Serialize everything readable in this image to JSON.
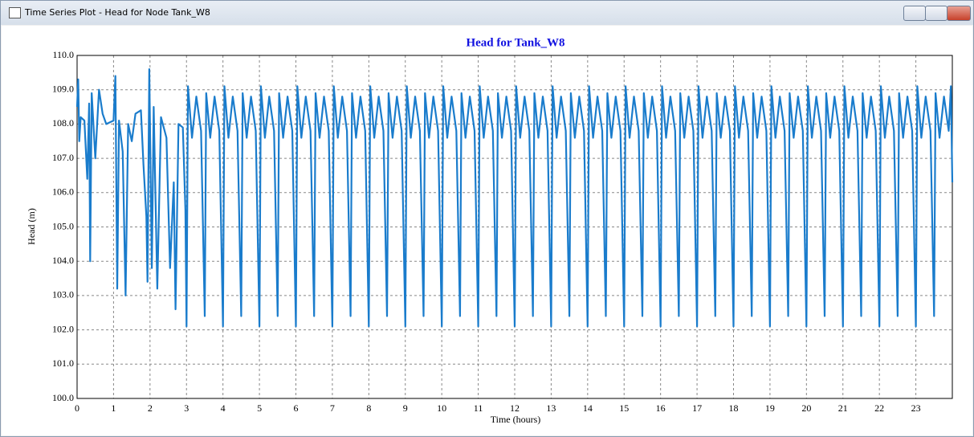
{
  "window_title": "Time Series Plot - Head for Node Tank_W8",
  "chart_data": {
    "type": "line",
    "title": "Head for Tank_W8",
    "x_label": "Time (hours)",
    "y_label": "Head (m)",
    "color": "#1a7ccc",
    "grid": true,
    "xlim": [
      0,
      24
    ],
    "xticks": [
      0,
      1,
      2,
      3,
      4,
      5,
      6,
      7,
      8,
      9,
      10,
      11,
      12,
      13,
      14,
      15,
      16,
      17,
      18,
      19,
      20,
      21,
      22,
      23
    ],
    "ylim": [
      100,
      110
    ],
    "yticks": [
      {
        "value": 100,
        "label": "100.0"
      },
      {
        "value": 101,
        "label": "101.0"
      },
      {
        "value": 102,
        "label": "102.0"
      },
      {
        "value": 103,
        "label": "103.0"
      },
      {
        "value": 104,
        "label": "104.0"
      },
      {
        "value": 105,
        "label": "105.0"
      },
      {
        "value": 106,
        "label": "106.0"
      },
      {
        "value": 107,
        "label": "107.0"
      },
      {
        "value": 108,
        "label": "108.0"
      },
      {
        "value": 109,
        "label": "109.0"
      },
      {
        "value": 110,
        "label": "110.0"
      }
    ],
    "x": [
      0,
      0.03,
      0.06,
      0.1,
      0.2,
      0.28,
      0.33,
      0.36,
      0.4,
      0.5,
      0.6,
      0.7,
      0.8,
      1,
      1.05,
      1.1,
      1.15,
      1.25,
      1.33,
      1.4,
      1.5,
      1.6,
      1.75,
      1.82,
      1.9,
      1.93,
      1.98,
      2.05,
      2.1,
      2.2,
      2.3,
      2.45,
      2.55,
      2.65,
      2.7,
      2.78,
      2.9,
      2.97,
      3,
      3.04,
      3.15,
      3.27,
      3.4,
      3.5,
      3.54,
      3.65,
      3.77,
      3.9,
      4,
      4.04,
      4.15,
      4.27,
      4.4,
      4.5,
      4.54,
      4.65,
      4.77,
      4.9,
      5,
      5.04,
      5.15,
      5.27,
      5.4,
      5.5,
      5.54,
      5.65,
      5.77,
      5.9,
      6,
      6.04,
      6.15,
      6.27,
      6.4,
      6.5,
      6.54,
      6.65,
      6.77,
      6.9,
      7,
      7.04,
      7.15,
      7.27,
      7.4,
      7.5,
      7.54,
      7.65,
      7.77,
      7.9,
      8,
      8.04,
      8.15,
      8.27,
      8.4,
      8.5,
      8.54,
      8.65,
      8.77,
      8.9,
      9,
      9.04,
      9.15,
      9.27,
      9.4,
      9.5,
      9.54,
      9.65,
      9.77,
      9.9,
      10,
      10.04,
      10.15,
      10.27,
      10.4,
      10.5,
      10.54,
      10.65,
      10.77,
      10.9,
      11,
      11.04,
      11.15,
      11.27,
      11.4,
      11.5,
      11.54,
      11.65,
      11.77,
      11.9,
      12,
      12.04,
      12.15,
      12.27,
      12.4,
      12.5,
      12.54,
      12.65,
      12.77,
      12.9,
      13,
      13.04,
      13.15,
      13.27,
      13.4,
      13.5,
      13.54,
      13.65,
      13.77,
      13.9,
      14,
      14.04,
      14.15,
      14.27,
      14.4,
      14.5,
      14.54,
      14.65,
      14.77,
      14.9,
      15,
      15.04,
      15.15,
      15.27,
      15.4,
      15.5,
      15.54,
      15.65,
      15.77,
      15.9,
      16,
      16.04,
      16.15,
      16.27,
      16.4,
      16.5,
      16.54,
      16.65,
      16.77,
      16.9,
      17,
      17.04,
      17.15,
      17.27,
      17.4,
      17.5,
      17.54,
      17.65,
      17.77,
      17.9,
      18,
      18.04,
      18.15,
      18.27,
      18.4,
      18.5,
      18.54,
      18.65,
      18.77,
      18.9,
      19,
      19.04,
      19.15,
      19.27,
      19.4,
      19.5,
      19.54,
      19.65,
      19.77,
      19.9,
      20,
      20.04,
      20.15,
      20.27,
      20.4,
      20.5,
      20.54,
      20.65,
      20.77,
      20.9,
      21,
      21.04,
      21.15,
      21.27,
      21.4,
      21.5,
      21.54,
      21.65,
      21.77,
      21.9,
      22,
      22.04,
      22.15,
      22.27,
      22.4,
      22.5,
      22.54,
      22.65,
      22.77,
      22.9,
      23,
      23.04,
      23.15,
      23.27,
      23.4,
      23.5,
      23.54,
      23.65,
      23.77,
      23.9,
      23.96,
      24
    ],
    "values": [
      108.5,
      109.3,
      107.5,
      108.2,
      108.1,
      106.4,
      108.6,
      104.0,
      108.9,
      107.0,
      109.0,
      108.3,
      108.0,
      108.1,
      109.4,
      103.2,
      108.1,
      107.2,
      103.0,
      108.0,
      107.5,
      108.3,
      108.4,
      106.8,
      105.3,
      103.4,
      109.6,
      103.8,
      108.5,
      103.2,
      108.2,
      107.6,
      103.8,
      106.3,
      102.6,
      108.0,
      107.9,
      105.5,
      102.1,
      109.1,
      107.6,
      108.8,
      107.8,
      102.4,
      108.9,
      107.6,
      108.8,
      107.8,
      102.1,
      109.1,
      107.6,
      108.8,
      107.8,
      102.4,
      108.9,
      107.6,
      108.8,
      107.8,
      102.1,
      109.1,
      107.6,
      108.8,
      107.8,
      102.4,
      108.9,
      107.6,
      108.8,
      107.8,
      102.1,
      109.1,
      107.6,
      108.8,
      107.8,
      102.4,
      108.9,
      107.6,
      108.8,
      107.8,
      102.1,
      109.1,
      107.6,
      108.8,
      107.8,
      102.4,
      108.9,
      107.6,
      108.8,
      107.8,
      102.1,
      109.1,
      107.6,
      108.8,
      107.8,
      102.4,
      108.9,
      107.6,
      108.8,
      107.8,
      102.1,
      109.1,
      107.6,
      108.8,
      107.8,
      102.4,
      108.9,
      107.6,
      108.8,
      107.8,
      102.1,
      109.1,
      107.6,
      108.8,
      107.8,
      102.4,
      108.9,
      107.6,
      108.8,
      107.8,
      102.1,
      109.1,
      107.6,
      108.8,
      107.8,
      102.4,
      108.9,
      107.6,
      108.8,
      107.8,
      102.1,
      109.1,
      107.6,
      108.8,
      107.8,
      102.4,
      108.9,
      107.6,
      108.8,
      107.8,
      102.1,
      109.1,
      107.6,
      108.8,
      107.8,
      102.4,
      108.9,
      107.6,
      108.8,
      107.8,
      102.1,
      109.1,
      107.6,
      108.8,
      107.8,
      102.4,
      108.9,
      107.6,
      108.8,
      107.8,
      102.1,
      109.1,
      107.6,
      108.8,
      107.8,
      102.4,
      108.9,
      107.6,
      108.8,
      107.8,
      102.1,
      109.1,
      107.6,
      108.8,
      107.8,
      102.4,
      108.9,
      107.6,
      108.8,
      107.8,
      102.1,
      109.1,
      107.6,
      108.8,
      107.8,
      102.4,
      108.9,
      107.6,
      108.8,
      107.8,
      102.1,
      109.1,
      107.6,
      108.8,
      107.8,
      102.4,
      108.9,
      107.6,
      108.8,
      107.8,
      102.1,
      109.1,
      107.6,
      108.8,
      107.8,
      102.4,
      108.9,
      107.6,
      108.8,
      107.8,
      102.1,
      109.1,
      107.6,
      108.8,
      107.8,
      102.4,
      108.9,
      107.6,
      108.8,
      107.8,
      102.1,
      109.1,
      107.6,
      108.8,
      107.8,
      102.4,
      108.9,
      107.6,
      108.8,
      107.8,
      102.1,
      109.1,
      107.6,
      108.8,
      107.8,
      102.4,
      108.9,
      107.6,
      108.8,
      107.8,
      102.1,
      109.1,
      107.6,
      108.8,
      107.8,
      102.4,
      108.9,
      107.6,
      108.8,
      107.8,
      109.1,
      106.3
    ]
  }
}
